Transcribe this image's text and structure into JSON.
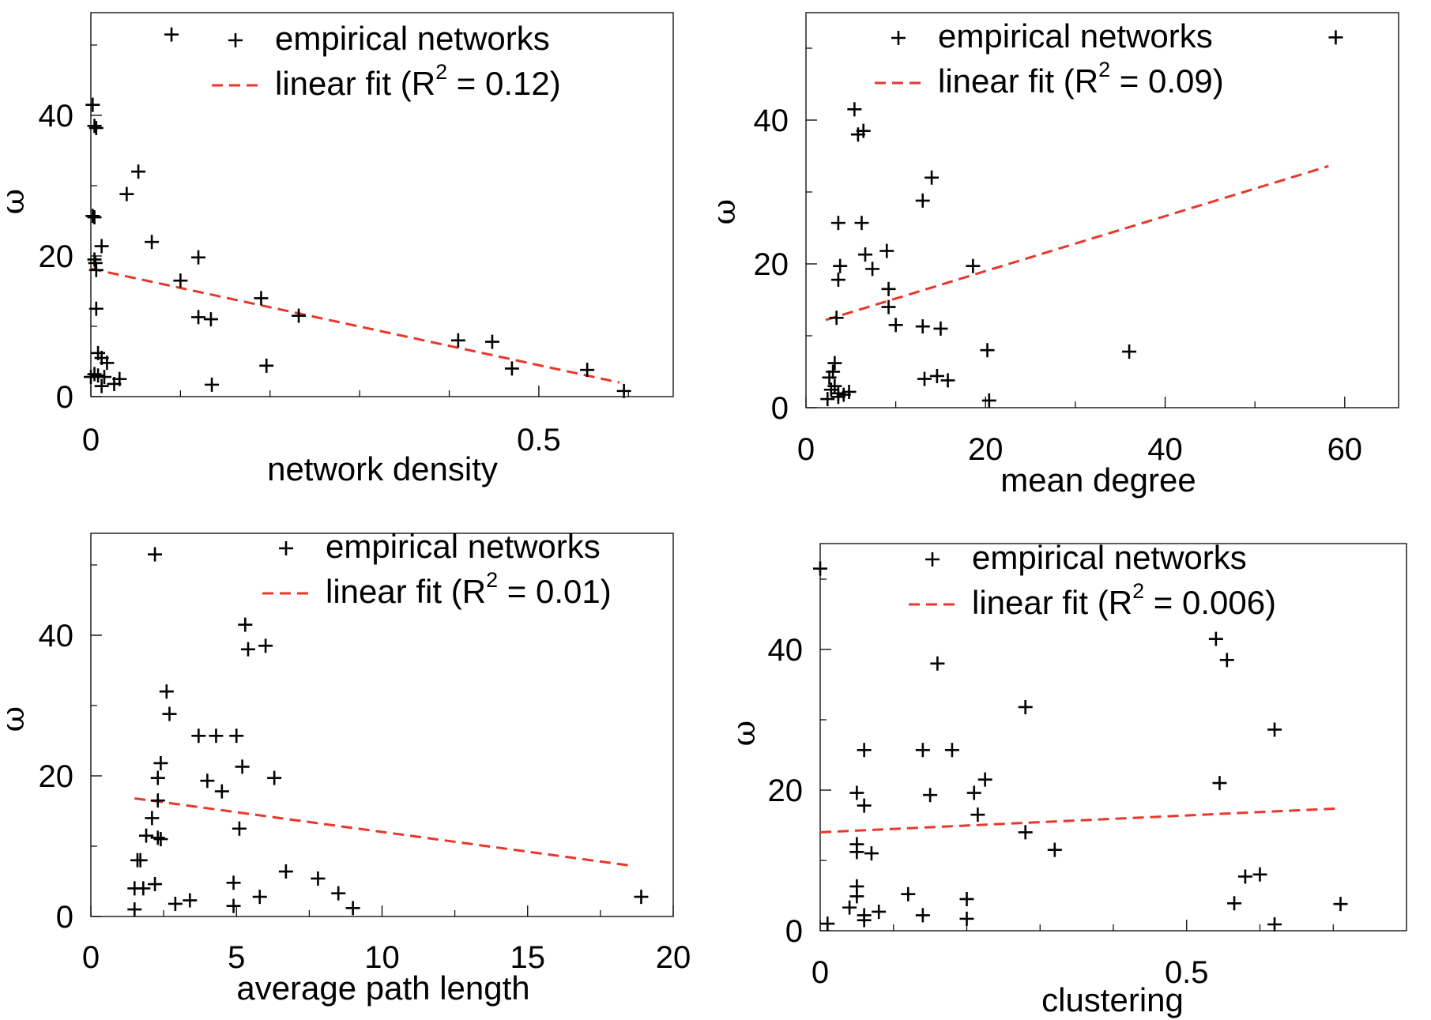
{
  "chart_data": [
    {
      "type": "scatter",
      "title": "",
      "xlabel": "network density",
      "ylabel": "ω",
      "xlim": [
        0,
        0.65
      ],
      "ylim": [
        0,
        55
      ],
      "xticks": [
        0,
        0.5
      ],
      "xtick_labels": [
        "0",
        "0.5"
      ],
      "xticks_minor": [
        0.1,
        0.2,
        0.3,
        0.4,
        0.6
      ],
      "yticks": [
        0,
        20,
        40
      ],
      "ytick_labels": [
        "0",
        "20",
        "40"
      ],
      "yticks_minor": [
        10,
        30,
        50
      ],
      "legend": {
        "position": "top-right",
        "entries": [
          "empirical networks",
          "linear fit (R",
          "2",
          " = 0.12)"
        ]
      },
      "series": [
        {
          "name": "empirical networks",
          "points": [
            [
              0.09,
              51.5
            ],
            [
              0.002,
              41.5
            ],
            [
              0.004,
              38.5
            ],
            [
              0.006,
              38.2
            ],
            [
              0.053,
              32
            ],
            [
              0.04,
              28.8
            ],
            [
              0.002,
              25.7
            ],
            [
              0.004,
              25.5
            ],
            [
              0.068,
              22
            ],
            [
              0.012,
              21.4
            ],
            [
              0.12,
              19.8
            ],
            [
              0.004,
              19.5
            ],
            [
              0.005,
              19
            ],
            [
              0.006,
              18
            ],
            [
              0.1,
              16.5
            ],
            [
              0.19,
              14
            ],
            [
              0.006,
              12.5
            ],
            [
              0.12,
              11.3
            ],
            [
              0.134,
              11
            ],
            [
              0.232,
              11.5
            ],
            [
              0.41,
              8
            ],
            [
              0.448,
              7.8
            ],
            [
              0.008,
              6.2
            ],
            [
              0.012,
              5.5
            ],
            [
              0.018,
              4.8
            ],
            [
              0.196,
              4.4
            ],
            [
              0.47,
              4
            ],
            [
              0.554,
              3.8
            ],
            [
              0.004,
              3.2
            ],
            [
              0.008,
              3
            ],
            [
              0.0,
              2.8
            ],
            [
              0.015,
              2.8
            ],
            [
              0.032,
              2.5
            ],
            [
              0.026,
              1.8
            ],
            [
              0.012,
              1.5
            ],
            [
              0.135,
              1.7
            ],
            [
              0.595,
              0.8
            ]
          ]
        },
        {
          "name": "linear fit",
          "type": "line",
          "x": [
            0,
            0.59
          ],
          "y": [
            18.2,
            2
          ]
        }
      ]
    },
    {
      "type": "scatter",
      "title": "",
      "xlabel": "mean degree",
      "ylabel": "ω",
      "xlim": [
        0,
        66
      ],
      "ylim": [
        0,
        55
      ],
      "xticks": [
        0,
        20,
        40,
        60
      ],
      "xtick_labels": [
        "0",
        "20",
        "40",
        "60"
      ],
      "xticks_minor": [
        10,
        30,
        50
      ],
      "yticks": [
        0,
        20,
        40
      ],
      "ytick_labels": [
        "0",
        "20",
        "40"
      ],
      "yticks_minor": [
        10,
        30,
        50
      ],
      "legend": {
        "position": "top-left",
        "entries": [
          "empirical networks",
          "linear fit (R",
          "2",
          " = 0.09)"
        ]
      },
      "series": [
        {
          "name": "empirical networks",
          "points": [
            [
              59,
              51.5
            ],
            [
              5.4,
              41.5
            ],
            [
              6.4,
              38.5
            ],
            [
              5.8,
              38
            ],
            [
              14,
              32
            ],
            [
              13,
              28.8
            ],
            [
              3.6,
              25.7
            ],
            [
              6.2,
              25.7
            ],
            [
              9,
              21.8
            ],
            [
              6.6,
              21.3
            ],
            [
              18.6,
              19.7
            ],
            [
              3.8,
              19.7
            ],
            [
              7.4,
              19.3
            ],
            [
              3.6,
              17.8
            ],
            [
              9.2,
              16.5
            ],
            [
              9.2,
              14
            ],
            [
              3.4,
              12.5
            ],
            [
              10,
              11.5
            ],
            [
              13,
              11.3
            ],
            [
              15,
              11
            ],
            [
              20.2,
              8
            ],
            [
              36,
              7.8
            ],
            [
              3.2,
              6.2
            ],
            [
              3,
              5
            ],
            [
              2.6,
              4.2
            ],
            [
              14.6,
              4.4
            ],
            [
              13.2,
              4
            ],
            [
              15.8,
              3.8
            ],
            [
              3.2,
              3
            ],
            [
              2.8,
              2.5
            ],
            [
              4.8,
              2.2
            ],
            [
              3.6,
              2
            ],
            [
              4.2,
              1.8
            ],
            [
              2.4,
              1.2
            ],
            [
              20.4,
              1
            ],
            [
              3.6,
              1.5
            ]
          ]
        },
        {
          "name": "linear fit",
          "type": "line",
          "x": [
            2.2,
            58.2
          ],
          "y": [
            12.2,
            33.6
          ]
        }
      ]
    },
    {
      "type": "scatter",
      "title": "",
      "xlabel": "average path length",
      "ylabel": "ω",
      "xlim": [
        0,
        20
      ],
      "ylim": [
        0,
        55
      ],
      "xticks": [
        0,
        5,
        10,
        15,
        20
      ],
      "xtick_labels": [
        "0",
        "5",
        "10",
        "15",
        "20"
      ],
      "xticks_minor": [
        2.5,
        7.5,
        12.5,
        17.5
      ],
      "yticks": [
        0,
        20,
        40
      ],
      "ytick_labels": [
        "0",
        "20",
        "40"
      ],
      "yticks_minor": [
        10,
        30,
        50
      ],
      "legend": {
        "position": "top-right",
        "entries": [
          "empirical networks",
          "linear fit (R",
          "2",
          " = 0.01)"
        ]
      },
      "series": [
        {
          "name": "empirical networks",
          "points": [
            [
              2.2,
              51.5
            ],
            [
              5.3,
              41.5
            ],
            [
              5.4,
              38
            ],
            [
              6,
              38.5
            ],
            [
              2.6,
              32
            ],
            [
              2.7,
              28.8
            ],
            [
              3.7,
              25.7
            ],
            [
              4.3,
              25.7
            ],
            [
              5,
              25.7
            ],
            [
              2.4,
              21.8
            ],
            [
              5.2,
              21.3
            ],
            [
              6.3,
              19.7
            ],
            [
              2.3,
              19.7
            ],
            [
              4,
              19.3
            ],
            [
              4.5,
              17.8
            ],
            [
              2.3,
              16.5
            ],
            [
              2.1,
              14
            ],
            [
              5.1,
              12.5
            ],
            [
              1.9,
              11.5
            ],
            [
              2.3,
              11.2
            ],
            [
              2.4,
              11
            ],
            [
              1.6,
              8
            ],
            [
              1.7,
              8
            ],
            [
              6.7,
              6.4
            ],
            [
              7.8,
              5.4
            ],
            [
              4.9,
              4.8
            ],
            [
              2.2,
              4.6
            ],
            [
              1.5,
              4
            ],
            [
              1.8,
              4
            ],
            [
              8.5,
              3.3
            ],
            [
              18.9,
              2.8
            ],
            [
              5.8,
              2.8
            ],
            [
              3.4,
              2.3
            ],
            [
              2.9,
              1.8
            ],
            [
              4.9,
              1.5
            ],
            [
              9.0,
              1.2
            ],
            [
              1.5,
              1
            ]
          ]
        },
        {
          "name": "linear fit",
          "type": "line",
          "x": [
            1.5,
            18.6
          ],
          "y": [
            16.8,
            7.2
          ]
        }
      ]
    },
    {
      "type": "scatter",
      "title": "",
      "xlabel": "clustering",
      "ylabel": "ω",
      "xlim": [
        0,
        0.8
      ],
      "ylim": [
        0,
        55
      ],
      "xticks": [
        0,
        0.5
      ],
      "xtick_labels": [
        "0",
        "0.5"
      ],
      "xticks_minor": [
        0.1,
        0.2,
        0.3,
        0.4,
        0.6,
        0.7
      ],
      "yticks": [
        0,
        20,
        40
      ],
      "ytick_labels": [
        "0",
        "20",
        "40"
      ],
      "yticks_minor": [
        10,
        30,
        50
      ],
      "legend": {
        "position": "top-right",
        "entries": [
          "empirical networks",
          "linear fit (R",
          "2",
          " = 0.006)"
        ]
      },
      "series": [
        {
          "name": "empirical networks",
          "points": [
            [
              0.0,
              51.5
            ],
            [
              0.54,
              41.5
            ],
            [
              0.555,
              38.5
            ],
            [
              0.16,
              38
            ],
            [
              0.28,
              31.8
            ],
            [
              0.62,
              28.6
            ],
            [
              0.06,
              25.7
            ],
            [
              0.14,
              25.7
            ],
            [
              0.18,
              25.7
            ],
            [
              0.545,
              21
            ],
            [
              0.225,
              21.5
            ],
            [
              0.05,
              19.6
            ],
            [
              0.21,
              19.6
            ],
            [
              0.15,
              19.3
            ],
            [
              0.06,
              17.8
            ],
            [
              0.215,
              16.5
            ],
            [
              0.28,
              14
            ],
            [
              0.05,
              12.3
            ],
            [
              0.32,
              11.5
            ],
            [
              0.05,
              11.2
            ],
            [
              0.07,
              11
            ],
            [
              0.6,
              8
            ],
            [
              0.58,
              7.7
            ],
            [
              0.05,
              6.3
            ],
            [
              0.12,
              5.2
            ],
            [
              0.05,
              4.9
            ],
            [
              0.2,
              4.5
            ],
            [
              0.565,
              3.9
            ],
            [
              0.71,
              3.8
            ],
            [
              0.04,
              3.3
            ],
            [
              0.08,
              2.7
            ],
            [
              0.14,
              2.2
            ],
            [
              0.06,
              2.2
            ],
            [
              0.2,
              1.7
            ],
            [
              0.06,
              1.5
            ],
            [
              0.01,
              1
            ],
            [
              0.62,
              0.9
            ]
          ]
        },
        {
          "name": "linear fit",
          "type": "line",
          "x": [
            0.0,
            0.71
          ],
          "y": [
            14,
            17.4
          ]
        }
      ]
    }
  ],
  "colors": {
    "points": "#000000",
    "fit": "#e8372a",
    "axes": "#000000"
  }
}
